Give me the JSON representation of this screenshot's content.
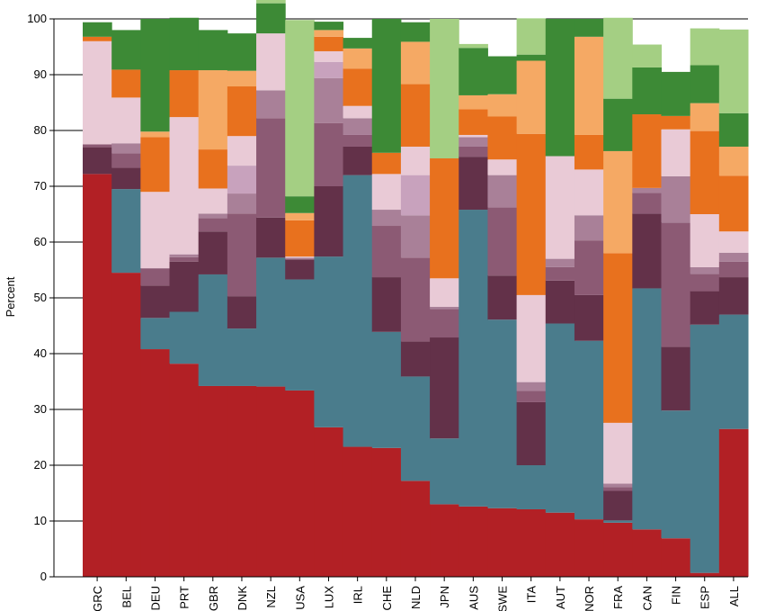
{
  "chart_data": {
    "type": "bar",
    "stacked": true,
    "ylabel": "Percent",
    "ylim": [
      0,
      100
    ],
    "yticks": [
      0,
      10,
      20,
      30,
      40,
      50,
      60,
      70,
      80,
      90,
      100
    ],
    "categories": [
      "GRC",
      "BEL",
      "DEU",
      "PRT",
      "GBR",
      "DNK",
      "NZL",
      "USA",
      "LUX",
      "IRL",
      "CHE",
      "NLD",
      "JPN",
      "AUS",
      "SWE",
      "ITA",
      "AUT",
      "NOR",
      "FRA",
      "CAN",
      "FIN",
      "ESP",
      "ALL"
    ],
    "series": [
      {
        "color": "#b22025",
        "values": [
          72.2,
          54.5,
          40.8,
          38.2,
          34.2,
          34.2,
          34.1,
          33.4,
          26.8,
          23.3,
          23.1,
          17.2,
          13.0,
          12.6,
          12.3,
          12.1,
          11.5,
          10.3,
          9.7,
          8.5,
          6.9,
          0.7,
          26.5
        ]
      },
      {
        "color": "#4a7c8c",
        "values": [
          0,
          15.0,
          5.6,
          9.3,
          20.0,
          10.3,
          23.1,
          19.9,
          30.6,
          48.7,
          20.8,
          18.7,
          11.8,
          53.2,
          33.8,
          7.9,
          33.9,
          32.0,
          0.4,
          43.2,
          22.9,
          44.5,
          20.5
        ]
      },
      {
        "color": "#633149",
        "values": [
          4.8,
          3.8,
          5.8,
          9.0,
          7.7,
          5.8,
          7.2,
          3.6,
          12.6,
          5.1,
          9.8,
          6.3,
          18.1,
          9.5,
          7.9,
          11.3,
          7.7,
          8.2,
          5.3,
          13.4,
          11.4,
          6.0,
          6.7
        ]
      },
      {
        "color": "#8c5a74",
        "values": [
          0.5,
          2.6,
          3.1,
          0.8,
          2.4,
          14.8,
          17.8,
          0,
          11.3,
          2.1,
          9.2,
          15.0,
          5.1,
          1.8,
          12.2,
          2.0,
          2.4,
          9.8,
          0.7,
          3.7,
          22.3,
          3.1,
          2.8
        ]
      },
      {
        "color": "#a98098",
        "values": [
          0,
          1.8,
          0,
          0.5,
          0.8,
          3.6,
          5.0,
          0.3,
          8.1,
          3.0,
          2.9,
          7.6,
          0.4,
          1.7,
          5.8,
          1.6,
          1.5,
          4.5,
          0.6,
          0.9,
          8.3,
          1.2,
          1.6
        ]
      },
      {
        "color": "#c8a2bd",
        "values": [
          0,
          0,
          0,
          0,
          0,
          5.0,
          0,
          0,
          2.9,
          0,
          0,
          7.2,
          0,
          0,
          0,
          0,
          0,
          0,
          0,
          0,
          0,
          0,
          0
        ]
      },
      {
        "color": "#e9cad6",
        "values": [
          18.5,
          8.2,
          13.7,
          24.6,
          4.5,
          5.3,
          10.2,
          0.2,
          1.9,
          2.2,
          6.4,
          5.1,
          5.1,
          0.4,
          2.8,
          15.6,
          18.4,
          8.2,
          10.9,
          0,
          8.4,
          9.5,
          3.8
        ]
      },
      {
        "color": "#e8711e",
        "values": [
          0.8,
          5.0,
          9.8,
          8.4,
          7.0,
          8.9,
          0,
          6.5,
          2.6,
          6.7,
          3.8,
          11.2,
          21.5,
          4.6,
          7.7,
          28.9,
          0,
          6.2,
          30.4,
          13.2,
          2.4,
          14.9,
          10.0
        ]
      },
      {
        "color": "#f5a964",
        "values": [
          0,
          0,
          1.0,
          0,
          14.2,
          2.8,
          0,
          1.3,
          1.2,
          3.6,
          0,
          7.6,
          0,
          2.5,
          4.0,
          13.1,
          0,
          17.6,
          18.3,
          0,
          0,
          5.0,
          5.2
        ]
      },
      {
        "color": "#3d8a36",
        "values": [
          2.6,
          7.1,
          20.2,
          9.4,
          7.2,
          6.7,
          5.4,
          3.0,
          1.5,
          1.9,
          24.0,
          3.5,
          0,
          8.5,
          6.8,
          1.1,
          24.6,
          3.2,
          9.4,
          8.4,
          7.9,
          6.8,
          6.0
        ]
      },
      {
        "color": "#a4cf83",
        "values": [
          0,
          0,
          0,
          0,
          0,
          0,
          1.7,
          31.6,
          0,
          0,
          0,
          0,
          25.0,
          0.7,
          0,
          6.5,
          0,
          0,
          14.5,
          4.1,
          0,
          6.6,
          15.0
        ]
      }
    ]
  }
}
